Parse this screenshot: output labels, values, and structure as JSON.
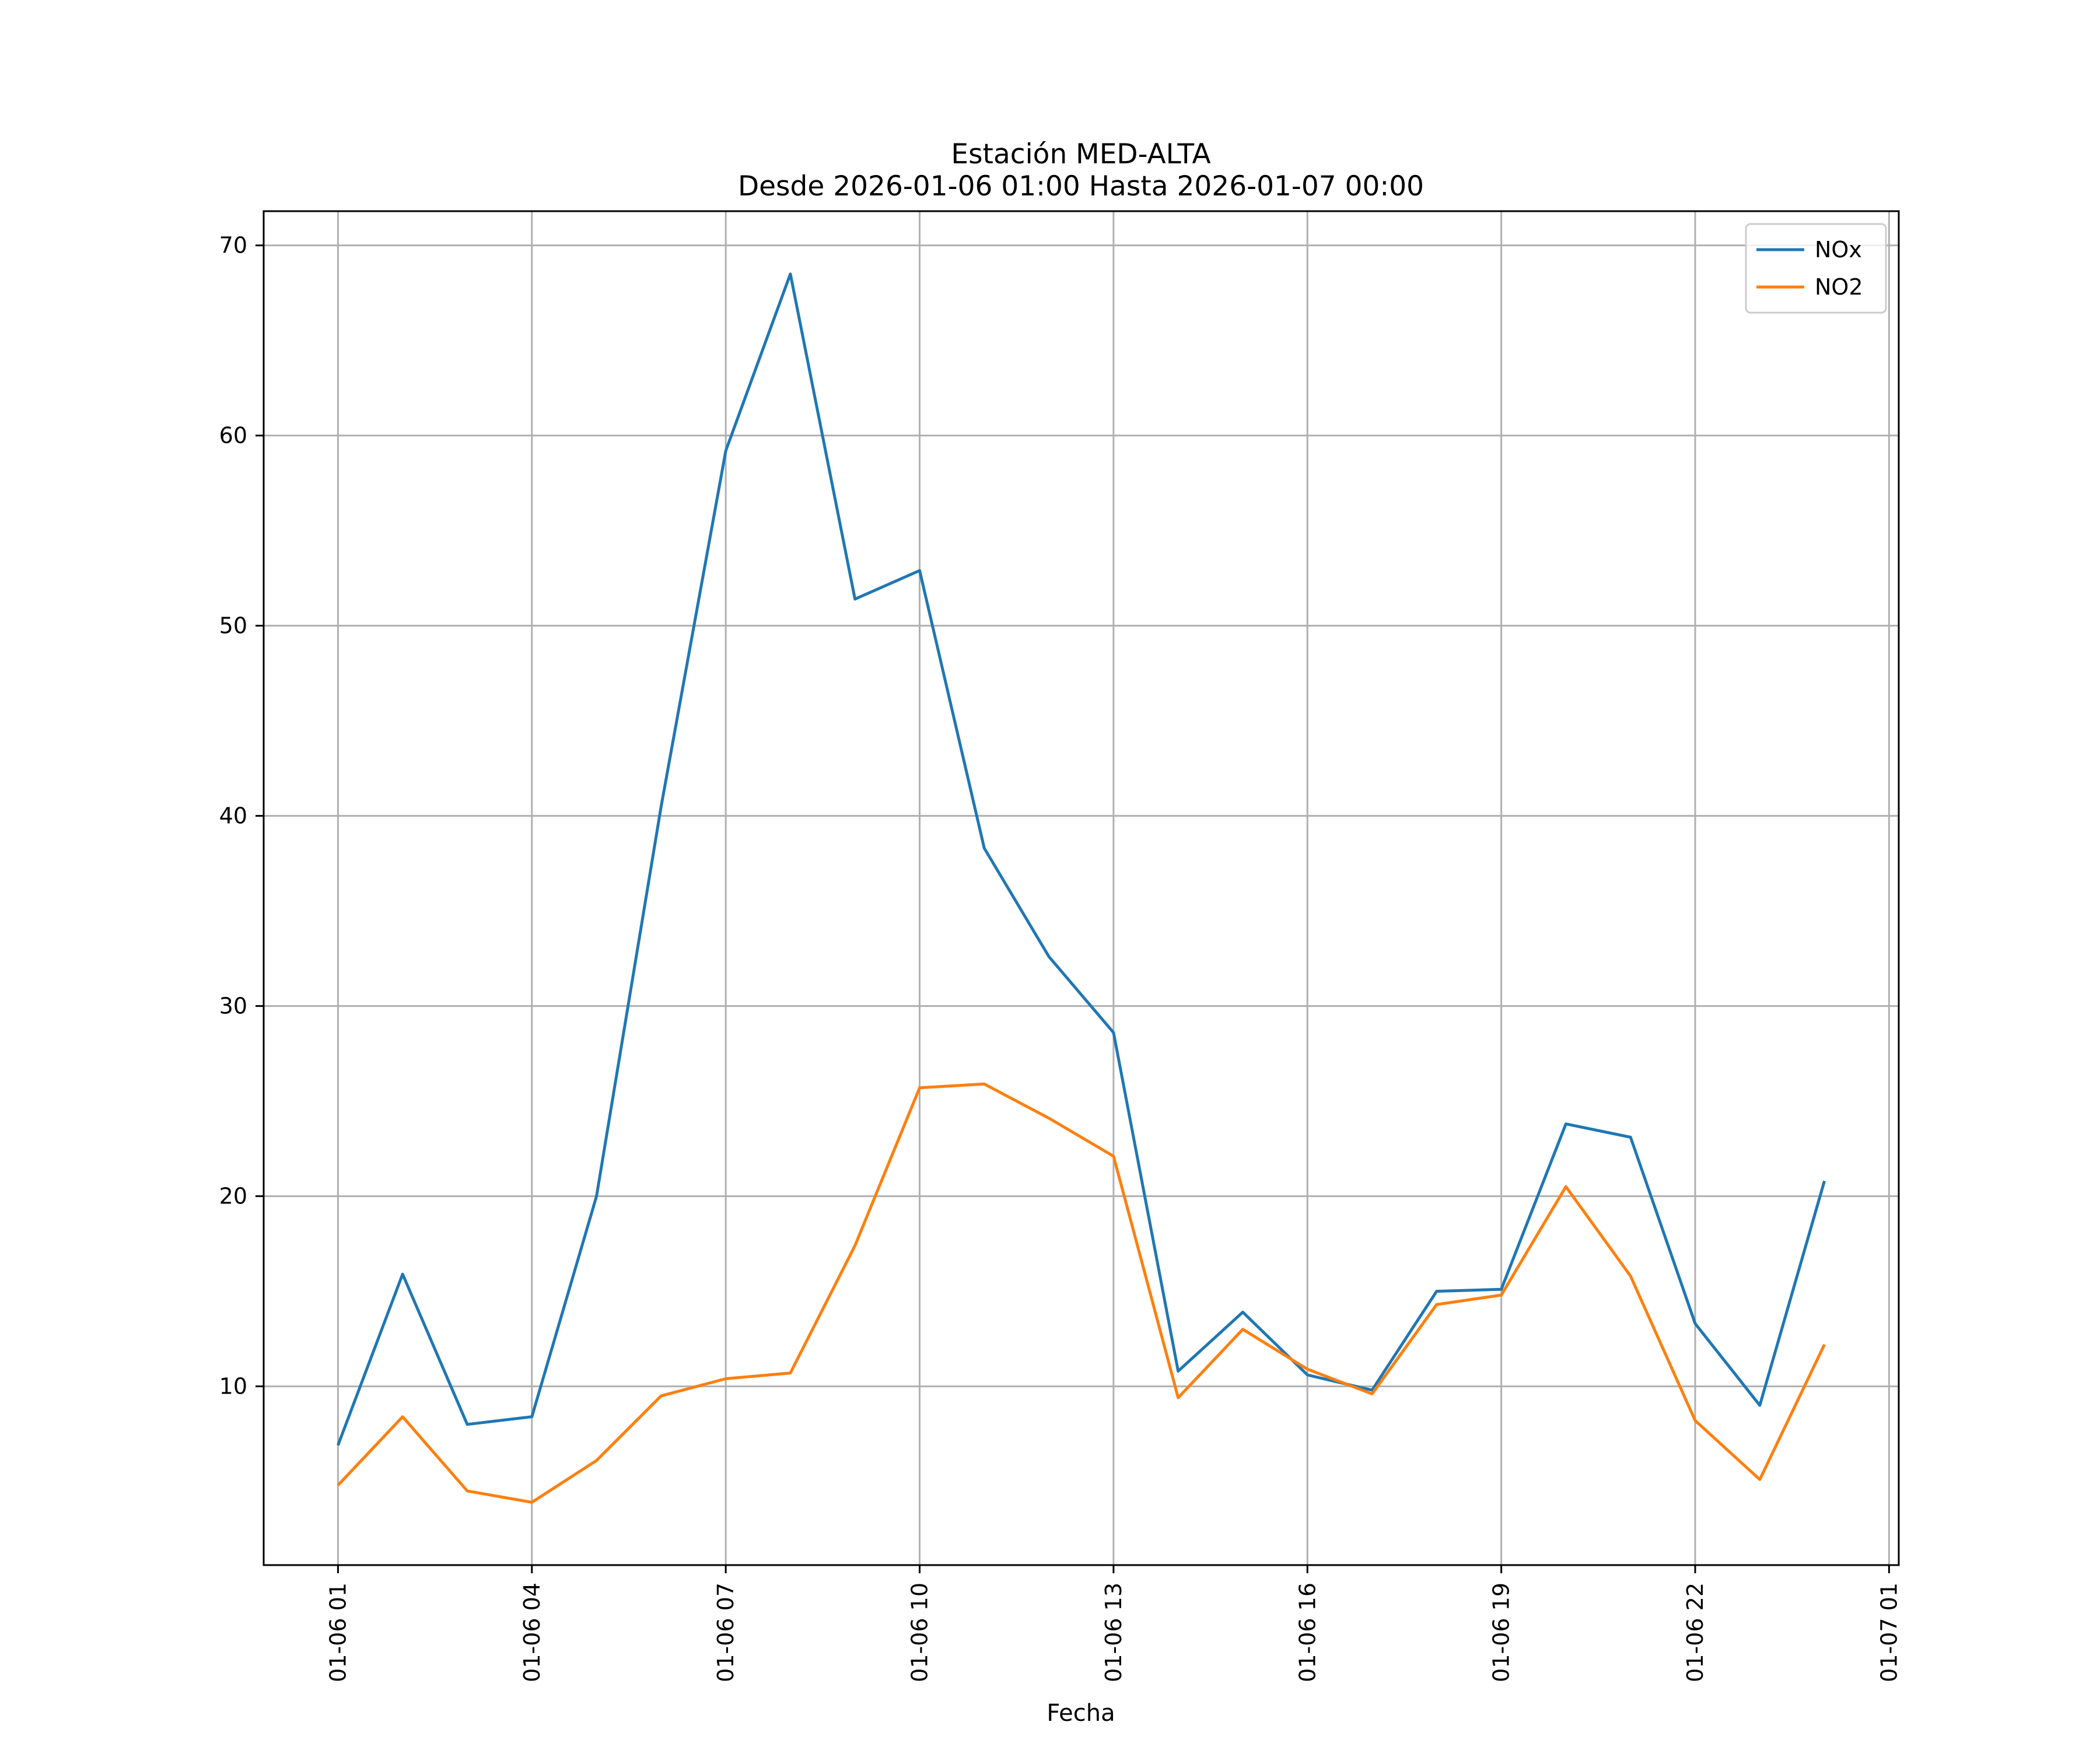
{
  "chart_data": {
    "type": "line",
    "title": "Estación MED-ALTA",
    "subtitle": "Desde 2026-01-06 01:00 Hasta 2026-01-07 00:00",
    "xlabel": "Fecha",
    "ylabel": "",
    "x": [
      "2026-01-06 01:00",
      "2026-01-06 02:00",
      "2026-01-06 03:00",
      "2026-01-06 04:00",
      "2026-01-06 05:00",
      "2026-01-06 06:00",
      "2026-01-06 07:00",
      "2026-01-06 08:00",
      "2026-01-06 09:00",
      "2026-01-06 10:00",
      "2026-01-06 11:00",
      "2026-01-06 12:00",
      "2026-01-06 13:00",
      "2026-01-06 14:00",
      "2026-01-06 15:00",
      "2026-01-06 16:00",
      "2026-01-06 17:00",
      "2026-01-06 18:00",
      "2026-01-06 19:00",
      "2026-01-06 20:00",
      "2026-01-06 21:00",
      "2026-01-06 22:00",
      "2026-01-06 23:00",
      "2026-01-07 00:00"
    ],
    "x_ticks": [
      "01-06 01",
      "01-06 04",
      "01-06 07",
      "01-06 10",
      "01-06 13",
      "01-06 16",
      "01-06 19",
      "01-06 22",
      "01-07 01"
    ],
    "x_tick_values": [
      "2026-01-06 01:00",
      "2026-01-06 04:00",
      "2026-01-06 07:00",
      "2026-01-06 10:00",
      "2026-01-06 13:00",
      "2026-01-06 16:00",
      "2026-01-06 19:00",
      "2026-01-06 22:00",
      "2026-01-07 01:00"
    ],
    "xlim": [
      "2026-01-05 23:51",
      "2026-01-07 01:09"
    ],
    "y_ticks": [
      10,
      20,
      30,
      40,
      50,
      60,
      70
    ],
    "ylim": [
      0.6,
      71.8
    ],
    "grid": true,
    "legend_position": "top-right",
    "series": [
      {
        "name": "NOx",
        "color": "#1f77b4",
        "values": [
          6.9,
          15.9,
          8.0,
          8.4,
          20.0,
          40.5,
          59.2,
          68.5,
          51.4,
          52.9,
          38.3,
          32.6,
          28.6,
          10.8,
          13.9,
          10.6,
          9.8,
          15.0,
          15.1,
          23.8,
          23.1,
          13.3,
          9.0,
          20.8
        ]
      },
      {
        "name": "NO2",
        "color": "#ff7f0e",
        "values": [
          4.8,
          8.4,
          4.5,
          3.9,
          6.1,
          9.5,
          10.4,
          10.7,
          17.4,
          25.7,
          25.9,
          24.1,
          22.1,
          9.4,
          13.0,
          10.9,
          9.6,
          14.3,
          14.8,
          20.5,
          15.8,
          8.2,
          5.1,
          12.2
        ]
      }
    ]
  }
}
